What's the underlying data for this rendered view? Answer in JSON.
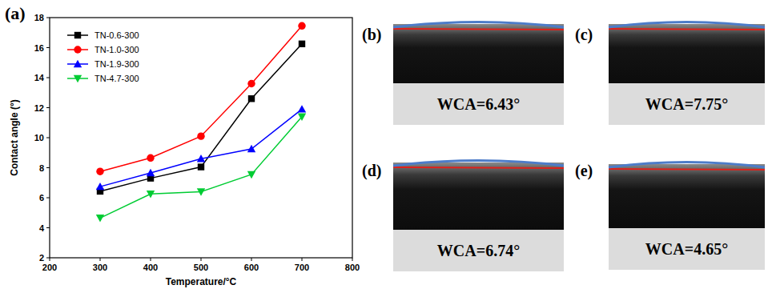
{
  "chart_data": {
    "type": "line",
    "title": "(a)",
    "x_label": "Temperature/°C",
    "y_label": "Contact angle (°)",
    "x": [
      300,
      400,
      500,
      600,
      700
    ],
    "series": [
      {
        "name": "TN-0.6-300",
        "color": "#000000",
        "marker": "square",
        "values": [
          6.43,
          7.3,
          8.05,
          12.6,
          16.25
        ]
      },
      {
        "name": "TN-1.0-300",
        "color": "#ff0000",
        "marker": "circle",
        "values": [
          7.75,
          8.65,
          10.1,
          13.6,
          17.45
        ]
      },
      {
        "name": "TN-1.9-300",
        "color": "#0000ff",
        "marker": "triangle",
        "values": [
          6.74,
          7.65,
          8.6,
          9.25,
          11.9
        ]
      },
      {
        "name": "TN-4.7-300",
        "color": "#00cc33",
        "marker": "triangle-down",
        "values": [
          4.65,
          6.25,
          6.4,
          7.55,
          11.4
        ]
      }
    ],
    "xlim": [
      200,
      800
    ],
    "xticks": [
      200,
      300,
      400,
      500,
      600,
      700,
      800
    ],
    "ylim": [
      2,
      18
    ],
    "yticks": [
      2,
      4,
      6,
      8,
      10,
      12,
      14,
      16,
      18
    ],
    "legend": "upper-left",
    "grid": false
  },
  "panels": [
    {
      "letter": "(b)",
      "label": "WCA=6.43°"
    },
    {
      "letter": "(c)",
      "label": "WCA=7.75°"
    },
    {
      "letter": "(d)",
      "label": "WCA=6.74°"
    },
    {
      "letter": "(e)",
      "label": "WCA=4.65°"
    }
  ]
}
